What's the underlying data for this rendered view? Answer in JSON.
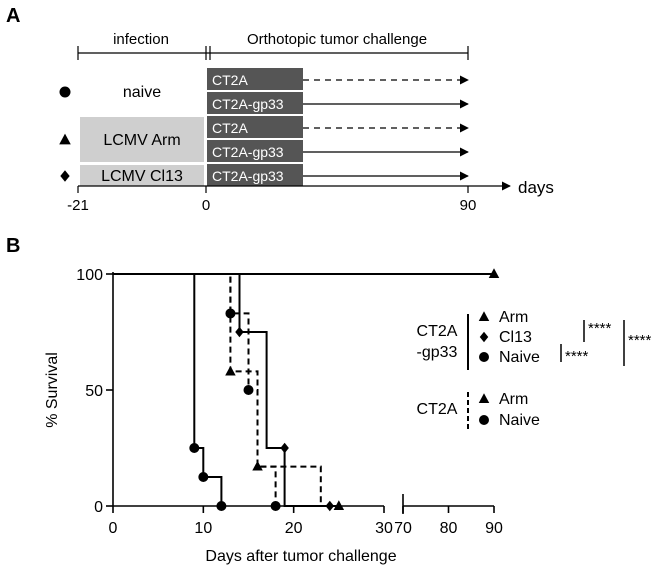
{
  "panels": {
    "a": "A",
    "b": "B"
  },
  "timeline": {
    "phase_infection": "infection",
    "phase_challenge": "Orthotopic tumor challenge",
    "axis_label": "days",
    "ticks": [
      {
        "day": -21,
        "label": "-21"
      },
      {
        "day": 0,
        "label": "0"
      },
      {
        "day": 90,
        "label": "90"
      }
    ],
    "groups": [
      {
        "symbol": "circle",
        "infection": "naive",
        "infection_boxed": false,
        "tumors": [
          {
            "name": "CT2A",
            "arrow": "dashed"
          },
          {
            "name": "CT2A-gp33",
            "arrow": "solid"
          }
        ]
      },
      {
        "symbol": "triangle",
        "infection": "LCMV Arm",
        "infection_boxed": true,
        "tumors": [
          {
            "name": "CT2A",
            "arrow": "dashed"
          },
          {
            "name": "CT2A-gp33",
            "arrow": "solid"
          }
        ]
      },
      {
        "symbol": "diamond",
        "infection": "LCMV Cl13",
        "infection_boxed": true,
        "tumors": [
          {
            "name": "CT2A-gp33",
            "arrow": "solid"
          }
        ]
      }
    ]
  },
  "chart_data": {
    "type": "line",
    "step": true,
    "xlabel": "Days after tumor challenge",
    "ylabel": "% Survival",
    "x_segments": [
      {
        "range": [
          0,
          30
        ],
        "ticks": [
          0,
          10,
          20,
          30
        ]
      },
      {
        "range": [
          70,
          90
        ],
        "ticks": [
          70,
          80,
          90
        ]
      }
    ],
    "yticks": [
      0,
      50,
      100
    ],
    "ylim": [
      0,
      100
    ],
    "grid": false,
    "legend_position": "right",
    "series": [
      {
        "name": "CT2A-gp33 Arm",
        "marker": "triangle",
        "line": "solid",
        "steps": [
          [
            0,
            100
          ],
          [
            90,
            100
          ]
        ],
        "marks": [
          [
            90,
            100
          ]
        ]
      },
      {
        "name": "CT2A-gp33 Cl13",
        "marker": "diamond",
        "line": "solid",
        "steps": [
          [
            0,
            100
          ],
          [
            14,
            100
          ],
          [
            14,
            75
          ],
          [
            17,
            75
          ],
          [
            17,
            25
          ],
          [
            19,
            25
          ],
          [
            19,
            0
          ],
          [
            24,
            0
          ]
        ],
        "marks": [
          [
            14,
            75
          ],
          [
            19,
            25
          ],
          [
            24,
            0
          ]
        ]
      },
      {
        "name": "CT2A-gp33 Naive",
        "marker": "circle",
        "line": "solid",
        "steps": [
          [
            0,
            100
          ],
          [
            9,
            100
          ],
          [
            9,
            25
          ],
          [
            10,
            25
          ],
          [
            10,
            12.5
          ],
          [
            12,
            12.5
          ],
          [
            12,
            0
          ]
        ],
        "marks": [
          [
            9,
            25
          ],
          [
            10,
            12.5
          ],
          [
            12,
            0
          ]
        ]
      },
      {
        "name": "CT2A Arm",
        "marker": "triangle",
        "line": "dashed",
        "steps": [
          [
            0,
            100
          ],
          [
            13,
            100
          ],
          [
            13,
            58
          ],
          [
            16,
            58
          ],
          [
            16,
            17
          ],
          [
            23,
            17
          ],
          [
            23,
            0
          ],
          [
            25,
            0
          ]
        ],
        "marks": [
          [
            13,
            58
          ],
          [
            16,
            17
          ],
          [
            25,
            0
          ]
        ]
      },
      {
        "name": "CT2A Naive",
        "marker": "circle",
        "line": "dashed",
        "steps": [
          [
            0,
            100
          ],
          [
            13,
            100
          ],
          [
            13,
            83
          ],
          [
            15,
            83
          ],
          [
            15,
            50
          ],
          [
            16,
            50
          ],
          [
            16,
            17
          ],
          [
            18,
            17
          ],
          [
            18,
            0
          ]
        ],
        "marks": [
          [
            13,
            83
          ],
          [
            15,
            50
          ],
          [
            18,
            0
          ]
        ]
      }
    ],
    "legend": {
      "group1_label_lines": [
        "CT2A",
        "-gp33"
      ],
      "group1_items": [
        {
          "marker": "triangle",
          "label": "Arm"
        },
        {
          "marker": "diamond",
          "label": "Cl13"
        },
        {
          "marker": "circle",
          "label": "Naive"
        }
      ],
      "group2_label": "CT2A",
      "group2_items": [
        {
          "marker": "triangle",
          "label": "Arm"
        },
        {
          "marker": "circle",
          "label": "Naive"
        }
      ]
    },
    "significance": [
      "****",
      "****",
      "****"
    ]
  }
}
